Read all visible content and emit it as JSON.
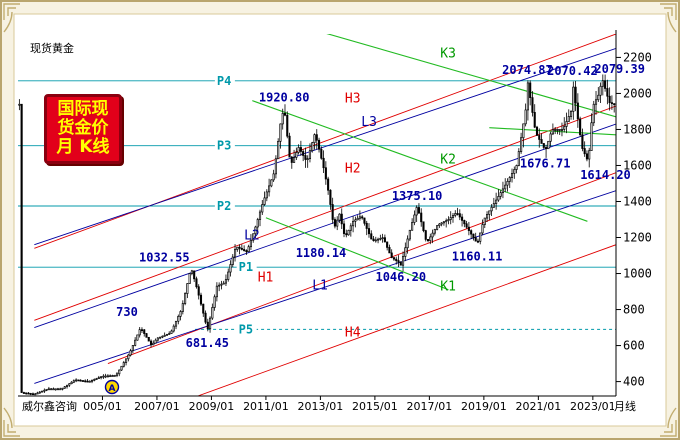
{
  "header": {
    "instrument": "现货黄金"
  },
  "badge": {
    "lines": [
      "国际现",
      "货金价",
      "月 K线"
    ]
  },
  "footer": {
    "watermark": "威尔鑫咨询",
    "period": "月线"
  },
  "colors": {
    "frame": "#c8b88a",
    "axis": "#000000",
    "candle_up": "#000000",
    "candle_down": "#000000",
    "red_channel": "#e00000",
    "blue_channel": "#0000a0",
    "green_channel": "#22bb22",
    "cyan_level": "#0099aa",
    "red_label": "#e00000",
    "blue_label": "#0000a0",
    "green_label": "#009900",
    "cyan_label": "#0099aa",
    "price_label": "#0000a0"
  },
  "chart_data": {
    "type": "candlestick",
    "title": "",
    "xlabel": "",
    "ylabel": "",
    "x_ticks": [
      "005/01",
      "2007/01",
      "2009/01",
      "2011/01",
      "2013/01",
      "2015/01",
      "2017/01",
      "2019/01",
      "2021/01",
      "2023/01"
    ],
    "x_tick_dates": [
      2005.0,
      2007.0,
      2009.0,
      2011.0,
      2013.0,
      2015.0,
      2017.0,
      2019.0,
      2021.0,
      2023.0
    ],
    "y_ticks": [
      400,
      600,
      800,
      1000,
      1200,
      1400,
      1600,
      1800,
      2000,
      2200
    ],
    "xlim": [
      2001.9,
      2023.85
    ],
    "ylim": [
      320,
      2330
    ],
    "monthly_close_anchors": [
      [
        2002.0,
        340
      ],
      [
        2002.5,
        330
      ],
      [
        2003.0,
        360
      ],
      [
        2003.5,
        360
      ],
      [
        2004.0,
        410
      ],
      [
        2004.5,
        400
      ],
      [
        2005.0,
        430
      ],
      [
        2005.5,
        435
      ],
      [
        2006.0,
        560
      ],
      [
        2006.4,
        700
      ],
      [
        2006.8,
        600
      ],
      [
        2007.0,
        640
      ],
      [
        2007.5,
        670
      ],
      [
        2007.9,
        800
      ],
      [
        2008.2,
        1000
      ],
      [
        2008.25,
        1032.55
      ],
      [
        2008.5,
        900
      ],
      [
        2008.8,
        720
      ],
      [
        2008.85,
        681.45
      ],
      [
        2009.2,
        930
      ],
      [
        2009.5,
        950
      ],
      [
        2009.9,
        1150
      ],
      [
        2010.3,
        1120
      ],
      [
        2010.6,
        1250
      ],
      [
        2010.9,
        1400
      ],
      [
        2011.3,
        1560
      ],
      [
        2011.55,
        1850
      ],
      [
        2011.67,
        1920.8
      ],
      [
        2011.9,
        1600
      ],
      [
        2012.2,
        1700
      ],
      [
        2012.5,
        1620
      ],
      [
        2012.8,
        1780
      ],
      [
        2013.1,
        1600
      ],
      [
        2013.3,
        1450
      ],
      [
        2013.5,
        1250
      ],
      [
        2013.7,
        1330
      ],
      [
        2013.9,
        1200
      ],
      [
        2014.2,
        1290
      ],
      [
        2014.5,
        1320
      ],
      [
        2014.9,
        1180
      ],
      [
        2015.3,
        1200
      ],
      [
        2015.6,
        1090
      ],
      [
        2015.9,
        1060
      ],
      [
        2015.95,
        1046.2
      ],
      [
        2016.3,
        1250
      ],
      [
        2016.55,
        1375.1
      ],
      [
        2016.9,
        1170
      ],
      [
        2017.3,
        1270
      ],
      [
        2017.7,
        1300
      ],
      [
        2018.0,
        1340
      ],
      [
        2018.4,
        1250
      ],
      [
        2018.7,
        1180
      ],
      [
        2018.75,
        1160.11
      ],
      [
        2019.0,
        1300
      ],
      [
        2019.5,
        1420
      ],
      [
        2019.9,
        1520
      ],
      [
        2020.2,
        1600
      ],
      [
        2020.6,
        1970
      ],
      [
        2020.6,
        2074.87
      ],
      [
        2020.9,
        1780
      ],
      [
        2021.2,
        1700
      ],
      [
        2021.25,
        1676.71
      ],
      [
        2021.5,
        1800
      ],
      [
        2021.9,
        1800
      ],
      [
        2022.2,
        1900
      ],
      [
        2022.25,
        2070.42
      ],
      [
        2022.6,
        1700
      ],
      [
        2022.8,
        1630
      ],
      [
        2022.83,
        1614.2
      ],
      [
        2023.0,
        1930
      ],
      [
        2023.2,
        1990
      ],
      [
        2023.35,
        2079.39
      ],
      [
        2023.6,
        1950
      ],
      [
        2023.75,
        1940
      ]
    ],
    "price_annotations": [
      {
        "text": "730",
        "x": 2005.9,
        "y": 730
      },
      {
        "text": "1032.55",
        "x": 2008.2,
        "y": 1032.55
      },
      {
        "text": "681.45",
        "x": 2008.85,
        "y": 681.45
      },
      {
        "text": "1920.80",
        "x": 2011.67,
        "y": 1920.8
      },
      {
        "text": "1180.14",
        "x": 2013.95,
        "y": 1180.14
      },
      {
        "text": "1375.10",
        "x": 2016.55,
        "y": 1375.1
      },
      {
        "text": "1046.20",
        "x": 2015.95,
        "y": 1046.2
      },
      {
        "text": "1160.11",
        "x": 2018.75,
        "y": 1160.11
      },
      {
        "text": "2074.87",
        "x": 2020.6,
        "y": 2074.87
      },
      {
        "text": "1676.71",
        "x": 2021.25,
        "y": 1676.71
      },
      {
        "text": "2070.42",
        "x": 2022.25,
        "y": 2070.42
      },
      {
        "text": "1614.20",
        "x": 2022.83,
        "y": 1614.2
      },
      {
        "text": "2079.39",
        "x": 2023.35,
        "y": 2079.39
      }
    ],
    "horizontal_levels": [
      {
        "label": "P4",
        "y": 2070,
        "style": "solid"
      },
      {
        "label": "P3",
        "y": 1710,
        "style": "solid"
      },
      {
        "label": "P2",
        "y": 1375,
        "style": "solid"
      },
      {
        "label": "P1",
        "y": 1035,
        "style": "solid"
      },
      {
        "label": "P5",
        "y": 690,
        "style": "dashed"
      }
    ],
    "trend_lines": [
      {
        "label": "H3",
        "color": "red",
        "p1": [
          2002.5,
          1140
        ],
        "p2": [
          2023.85,
          2330
        ]
      },
      {
        "label": "H2",
        "color": "red",
        "p1": [
          2002.5,
          740
        ],
        "p2": [
          2023.85,
          1930
        ]
      },
      {
        "label": "H1",
        "color": "red",
        "p1": [
          2005.2,
          500
        ],
        "p2": [
          2023.85,
          1560
        ]
      },
      {
        "label": "H4",
        "color": "red",
        "p1": [
          2008.5,
          320
        ],
        "p2": [
          2023.85,
          1160
        ]
      },
      {
        "label": "L3",
        "color": "blue",
        "p1": [
          2002.5,
          1160
        ],
        "p2": [
          2023.85,
          2250
        ]
      },
      {
        "label": "L2",
        "color": "blue",
        "p1": [
          2002.5,
          700
        ],
        "p2": [
          2023.85,
          1830
        ]
      },
      {
        "label": "L1",
        "color": "blue",
        "p1": [
          2002.5,
          390
        ],
        "p2": [
          2023.85,
          1460
        ]
      },
      {
        "label": "K3",
        "color": "green",
        "p1": [
          2012.6,
          2360
        ],
        "p2": [
          2023.85,
          1870
        ]
      },
      {
        "label": "K2",
        "color": "green",
        "p1": [
          2010.5,
          1960
        ],
        "p2": [
          2022.8,
          1290
        ]
      },
      {
        "label": "K1",
        "color": "green",
        "p1": [
          2011.0,
          1310
        ],
        "p2": [
          2017.7,
          910
        ]
      },
      {
        "label": "",
        "color": "green",
        "p1": [
          2019.2,
          1810
        ],
        "p2": [
          2023.85,
          1770
        ]
      }
    ],
    "line_labels": [
      {
        "text": "H3",
        "x": 2013.9,
        "y": 1950,
        "color": "red"
      },
      {
        "text": "H2",
        "x": 2013.9,
        "y": 1560,
        "color": "red"
      },
      {
        "text": "H1",
        "x": 2010.7,
        "y": 955,
        "color": "red"
      },
      {
        "text": "H4",
        "x": 2013.9,
        "y": 650,
        "color": "red"
      },
      {
        "text": "L3",
        "x": 2014.5,
        "y": 1820,
        "color": "blue"
      },
      {
        "text": "L2",
        "x": 2010.2,
        "y": 1190,
        "color": "blue"
      },
      {
        "text": "L1",
        "x": 2012.7,
        "y": 910,
        "color": "blue"
      },
      {
        "text": "K3",
        "x": 2017.4,
        "y": 2200,
        "color": "green"
      },
      {
        "text": "K2",
        "x": 2017.4,
        "y": 1610,
        "color": "green"
      },
      {
        "text": "K1",
        "x": 2017.4,
        "y": 905,
        "color": "green"
      }
    ],
    "marker": {
      "text": "A",
      "x": 2005.35,
      "y": 370
    }
  }
}
